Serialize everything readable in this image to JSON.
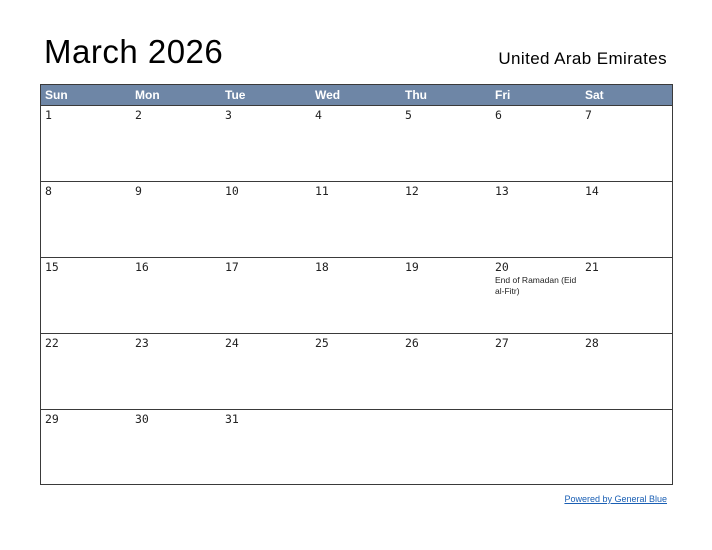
{
  "header": {
    "title": "March 2026",
    "country": "United Arab Emirates"
  },
  "weekdays": [
    "Sun",
    "Mon",
    "Tue",
    "Wed",
    "Thu",
    "Fri",
    "Sat"
  ],
  "weeks": [
    [
      "1",
      "2",
      "3",
      "4",
      "5",
      "6",
      "7"
    ],
    [
      "8",
      "9",
      "10",
      "11",
      "12",
      "13",
      "14"
    ],
    [
      "15",
      "16",
      "17",
      "18",
      "19",
      "20",
      "21"
    ],
    [
      "22",
      "23",
      "24",
      "25",
      "26",
      "27",
      "28"
    ],
    [
      "29",
      "30",
      "31",
      "",
      "",
      "",
      ""
    ]
  ],
  "events": {
    "20": "End of Ramadan (Eid al-Fitr)"
  },
  "footer": {
    "credit": "Powered by General Blue"
  },
  "colors": {
    "header_bg": "#6e86a6",
    "grid": "#3a3a3a",
    "link": "#1a5fb4"
  }
}
